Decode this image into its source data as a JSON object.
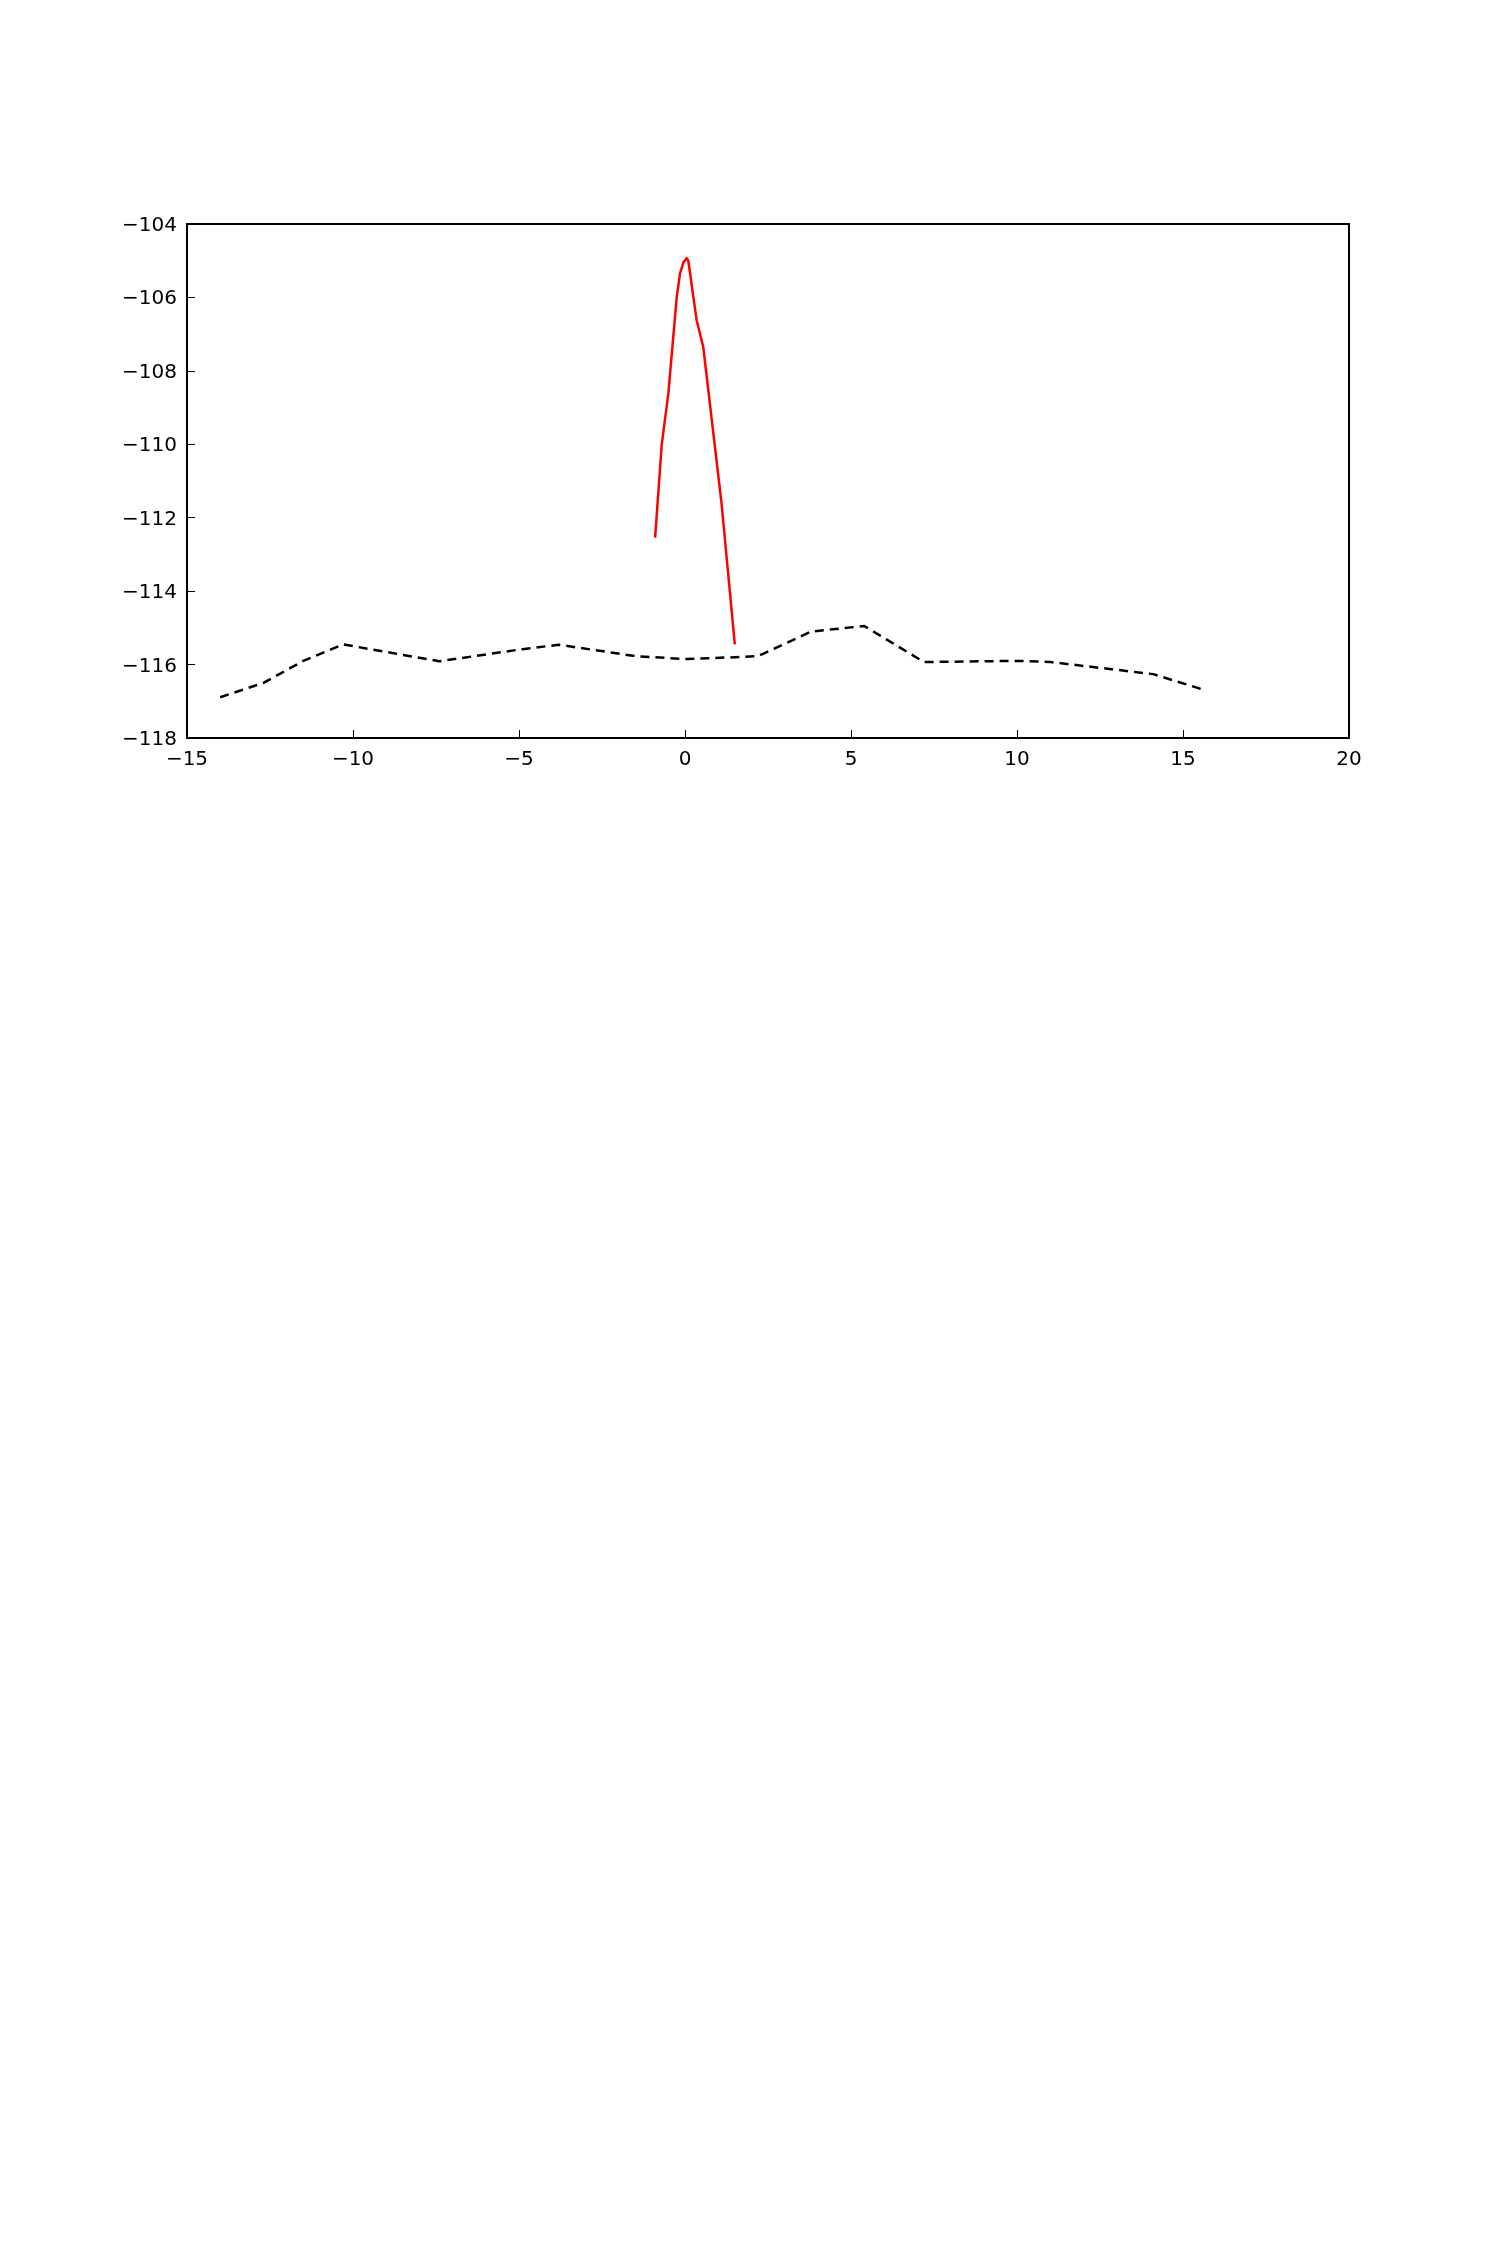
{
  "chart_data": {
    "type": "line",
    "xlim": [
      -15,
      20
    ],
    "xticks": [
      -15,
      -10,
      -5,
      0,
      5,
      10,
      15,
      20
    ],
    "ylim": [
      -118,
      -104
    ],
    "yticks": [
      -118,
      -116,
      -114,
      -112,
      -110,
      -108,
      -106,
      -104
    ],
    "marker": "none",
    "series": [
      {
        "color": "#000000",
        "line_style": "dashed",
        "x": [
          -14,
          -12.7,
          -11.5,
          -10.3,
          -7.4,
          -4.9,
          -3.8,
          -1.5,
          0,
          1.8,
          2.2,
          3.8,
          5.4,
          7.2,
          10,
          11,
          14.1,
          15.6
        ],
        "values": [
          -116.89,
          -116.5,
          -115.9,
          -115.45,
          -115.91,
          -115.58,
          -115.46,
          -115.77,
          -115.85,
          -115.79,
          -115.77,
          -115.1,
          -114.95,
          -115.93,
          -115.9,
          -115.93,
          -116.26,
          -116.68
        ]
      },
      {
        "color": "#ff0000",
        "line_style": "solid",
        "x": [
          -0.9,
          -0.7,
          -0.5,
          -0.25,
          -0.15,
          -0.05,
          0.05,
          0.1,
          0.35,
          0.55,
          1.1,
          1.5
        ],
        "values": [
          -112.54,
          -110.0,
          -108.6,
          -106.0,
          -105.35,
          -105.05,
          -104.93,
          -105.0,
          -106.62,
          -107.35,
          -111.6,
          -115.45
        ]
      }
    ]
  }
}
